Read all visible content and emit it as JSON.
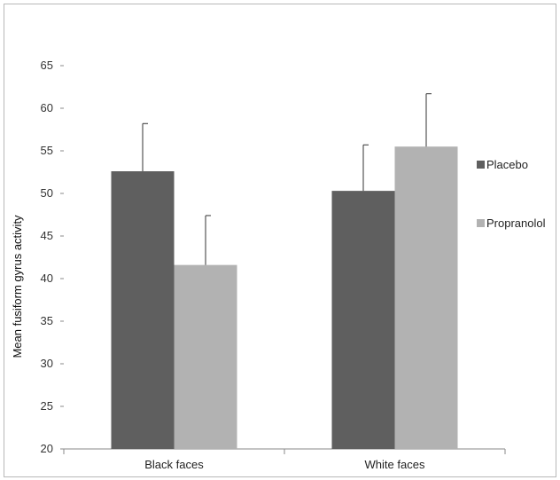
{
  "chart_data": {
    "type": "bar",
    "title": "",
    "xlabel": "",
    "ylabel": "Mean fusiform gyrus activity",
    "ylim": [
      20,
      65
    ],
    "yticks": [
      "20",
      "25",
      "30",
      "35",
      "40",
      "45",
      "50",
      "55",
      "60",
      "65"
    ],
    "categories": [
      "Black faces",
      "White faces"
    ],
    "series": [
      {
        "name": "Placebo",
        "color": "#5f5f5f",
        "values": [
          52.6,
          50.3
        ],
        "error": [
          5.6,
          5.4
        ]
      },
      {
        "name": "Propranolol",
        "color": "#b2b2b2",
        "values": [
          41.6,
          55.5
        ],
        "error": [
          5.8,
          6.2
        ]
      }
    ],
    "legend": "right",
    "grid": false
  }
}
